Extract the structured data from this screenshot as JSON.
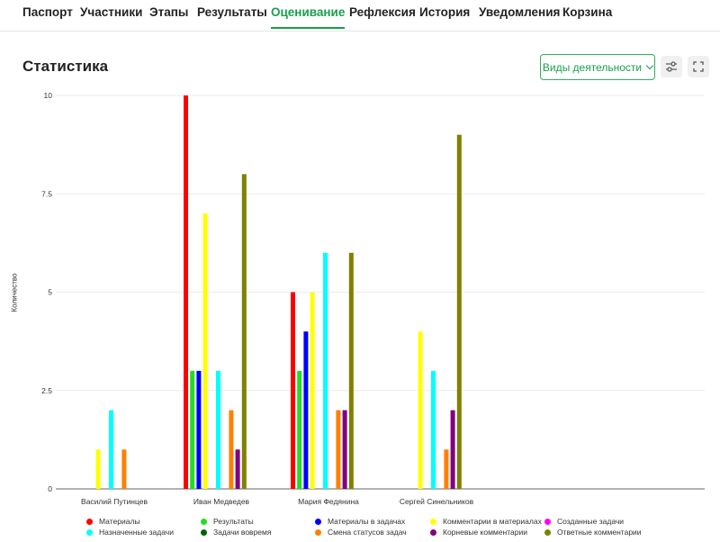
{
  "tabs": [
    {
      "label": "Паспорт",
      "active": false
    },
    {
      "label": "Участники",
      "active": false
    },
    {
      "label": "Этапы",
      "active": false
    },
    {
      "label": "Результаты",
      "active": false
    },
    {
      "label": "Оценивание",
      "active": true
    },
    {
      "label": "Рефлексия",
      "active": false
    },
    {
      "label": "История",
      "active": false
    },
    {
      "label": "Уведомления",
      "active": false
    },
    {
      "label": "Корзина",
      "active": false
    }
  ],
  "header": {
    "title": "Статистика",
    "dropdown_label": "Виды деятельности",
    "filter_icon": "sliders-icon",
    "fullscreen_icon": "fullscreen-icon",
    "accent_color": "#1a9e4b"
  },
  "chart_data": {
    "type": "bar",
    "ylabel": "Количество",
    "ylim": [
      0,
      10
    ],
    "yticks": [
      0,
      2.5,
      5,
      7.5,
      10
    ],
    "ytick_labels": [
      "0",
      "2.5",
      "5",
      "7.5",
      "10"
    ],
    "grid": true,
    "legend_position": "bottom",
    "categories": [
      "Василий Путинцев",
      "Иван Медведев",
      "Мария Федянина",
      "Сергей Синельников"
    ],
    "series": [
      {
        "name": "Материалы",
        "color": "#ff0000",
        "values": [
          0,
          10,
          5,
          0
        ]
      },
      {
        "name": "Результаты",
        "color": "#22dd22",
        "values": [
          0,
          3,
          3,
          0
        ]
      },
      {
        "name": "Материалы в задачах",
        "color": "#0000ff",
        "values": [
          0,
          3,
          4,
          0
        ]
      },
      {
        "name": "Комментарии в материалах",
        "color": "#ffff00",
        "values": [
          1,
          7,
          5,
          4
        ]
      },
      {
        "name": "Созданные задачи",
        "color": "#ff00ff",
        "values": [
          0,
          0,
          0,
          0
        ]
      },
      {
        "name": "Назначенные задачи",
        "color": "#00ffff",
        "values": [
          2,
          3,
          6,
          3
        ]
      },
      {
        "name": "Задачи вовремя",
        "color": "#006400",
        "values": [
          0,
          0,
          0,
          0
        ]
      },
      {
        "name": "Смена статусов задач",
        "color": "#ff8000",
        "values": [
          1,
          2,
          2,
          1
        ]
      },
      {
        "name": "Корневые комментарии",
        "color": "#800080",
        "values": [
          0,
          1,
          2,
          2
        ]
      },
      {
        "name": "Ответные комментарии",
        "color": "#808000",
        "values": [
          0,
          8,
          6,
          9
        ]
      }
    ]
  }
}
